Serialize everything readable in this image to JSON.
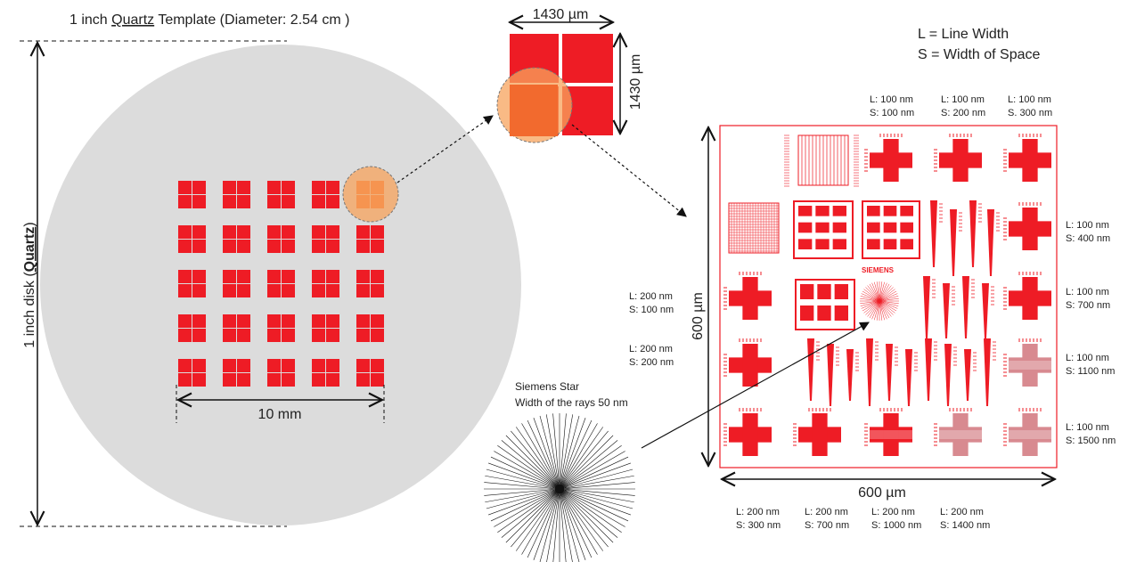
{
  "template": {
    "title_pre": "1 inch ",
    "title_quartz": "Quartz",
    "title_post": " Template (Diameter: 2.54 cm )",
    "disk_label_pre": "1 inch disk (",
    "disk_label_quartz": "Quartz",
    "disk_label_post": ")",
    "array_width_label": "10 mm",
    "array_rows": 5,
    "array_cols": 5,
    "highlighted_chip": {
      "row": 1,
      "col": 5
    }
  },
  "chip": {
    "width_label": "1430 µm",
    "height_label": "1430 µm"
  },
  "legend": {
    "line_width": "L = Line Width",
    "space_width": "S = Width of Space"
  },
  "star": {
    "title": "Siemens Star",
    "subtitle": "Width of the rays 50 nm",
    "ray_count": 72
  },
  "pattern": {
    "width_label": "600 µm",
    "height_label": "600 µm",
    "logo_text": "SIEMENS",
    "top_labels": [
      {
        "l": "L: 100 nm",
        "s": "S: 100 nm"
      },
      {
        "l": "L: 100 nm",
        "s": "S: 200 nm"
      },
      {
        "l": "L: 100 nm",
        "s": "S. 300 nm"
      }
    ],
    "right_labels": [
      {
        "l": "L: 100 nm",
        "s": "S: 400 nm"
      },
      {
        "l": "L: 100 nm",
        "s": "S: 700 nm"
      },
      {
        "l": "L: 100 nm",
        "s": "S: 1100 nm"
      },
      {
        "l": "L: 100 nm",
        "s": "S: 1500 nm"
      }
    ],
    "left_labels": [
      {
        "l": "L: 200 nm",
        "s": "S: 100 nm"
      },
      {
        "l": "L: 200 nm",
        "s": "S: 200 nm"
      }
    ],
    "bottom_labels": [
      {
        "l": "L: 200 nm",
        "s": "S: 300 nm"
      },
      {
        "l": "L: 200 nm",
        "s": "S: 700 nm"
      },
      {
        "l": "L: 200 nm",
        "s": "S: 1000 nm"
      },
      {
        "l": "L: 200 nm",
        "s": "S: 1400 nm"
      }
    ]
  },
  "colors": {
    "disk": "#dcdcdc",
    "red": "#ee1c25",
    "highlight": "#f7a35c",
    "highlight_core": "#f26a2e"
  }
}
